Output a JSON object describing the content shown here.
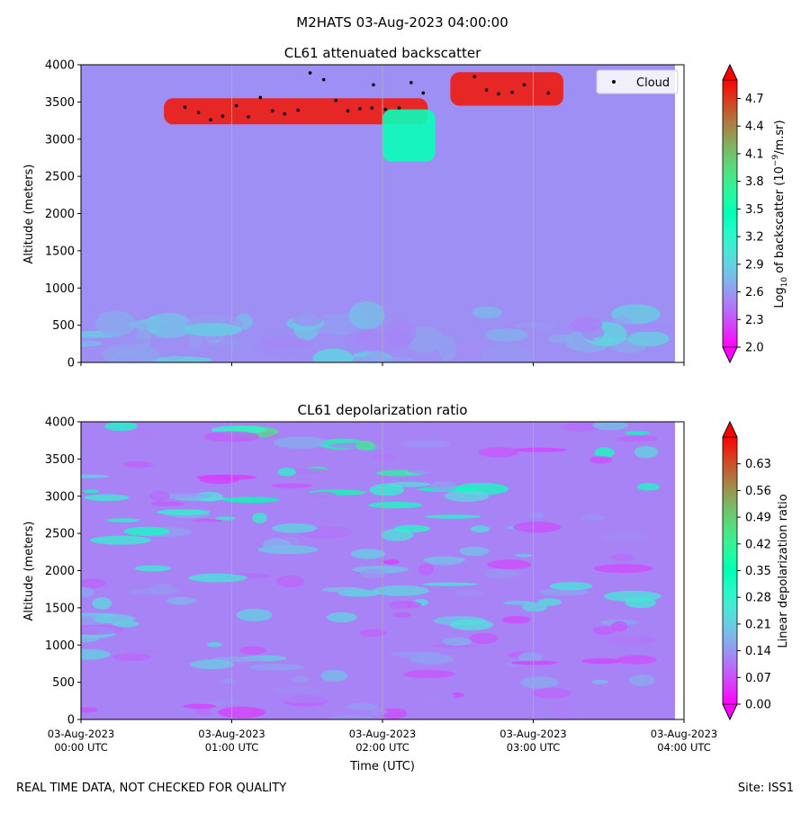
{
  "figure": {
    "suptitle": "M2HATS 03-Aug-2023 04:00:00",
    "footer_left": "REAL TIME DATA, NOT CHECKED FOR QUALITY",
    "footer_right": "Site: ISS1"
  },
  "chart_data": [
    {
      "type": "heatmap",
      "title": "CL61 attenuated backscatter",
      "ylabel": "Altitude (meters)",
      "xlabel": "",
      "ylim": [
        0,
        4000
      ],
      "yticks": [
        "0",
        "500",
        "1000",
        "1500",
        "2000",
        "2500",
        "3000",
        "3500",
        "4000"
      ],
      "xlim_hours": [
        0,
        4
      ],
      "grid": "vertical lines at hourly ticks",
      "colorbar": {
        "label": "Log10 of backscatter (10^-9/m.sr)",
        "label_parts": {
          "base": "Log",
          "sub": "10",
          "mid": " of backscatter (10",
          "sup": "−9",
          "end": "/m.sr)"
        },
        "vmin": 2.0,
        "vmax": 4.9,
        "ticks": [
          2.0,
          2.3,
          2.6,
          2.9,
          3.2,
          3.5,
          3.8,
          4.1,
          4.4,
          4.7
        ],
        "extend": "both",
        "colormap": "rainbow"
      },
      "background_value": 2.55,
      "features": [
        {
          "desc": "cloud layer base",
          "x_start_h": 0.55,
          "x_end_h": 2.3,
          "base_m": 3200,
          "top_m": 3550,
          "value": 4.8
        },
        {
          "desc": "cloud layer",
          "x_start_h": 2.45,
          "x_end_h": 3.2,
          "base_m": 3450,
          "top_m": 3900,
          "value": 4.8
        },
        {
          "desc": "fall streak",
          "x_start_h": 2.0,
          "x_end_h": 2.35,
          "base_m": 2700,
          "top_m": 3400,
          "value": 3.4
        }
      ],
      "series": [
        {
          "name": "Cloud",
          "marker": "black dot",
          "points": [
            [
              0.69,
              3430
            ],
            [
              0.78,
              3360
            ],
            [
              0.86,
              3260
            ],
            [
              0.94,
              3310
            ],
            [
              1.03,
              3450
            ],
            [
              1.11,
              3300
            ],
            [
              1.19,
              3560
            ],
            [
              1.27,
              3380
            ],
            [
              1.35,
              3340
            ],
            [
              1.44,
              3390
            ],
            [
              1.52,
              3890
            ],
            [
              1.61,
              3800
            ],
            [
              1.69,
              3520
            ],
            [
              1.77,
              3380
            ],
            [
              1.85,
              3410
            ],
            [
              1.93,
              3420
            ],
            [
              1.94,
              3730
            ],
            [
              2.02,
              3400
            ],
            [
              2.11,
              3420
            ],
            [
              2.19,
              3760
            ],
            [
              2.27,
              3620
            ],
            [
              2.61,
              3840
            ],
            [
              2.69,
              3660
            ],
            [
              2.77,
              3610
            ],
            [
              2.86,
              3630
            ],
            [
              2.94,
              3730
            ],
            [
              3.1,
              3620
            ]
          ]
        }
      ],
      "legend": {
        "position": "top-right",
        "entries": [
          "Cloud"
        ]
      }
    },
    {
      "type": "heatmap",
      "title": "CL61 depolarization ratio",
      "ylabel": "Altitude (meters)",
      "xlabel": "Time (UTC)",
      "ylim": [
        0,
        4000
      ],
      "yticks": [
        "0",
        "500",
        "1000",
        "1500",
        "2000",
        "2500",
        "3000",
        "3500",
        "4000"
      ],
      "xlim_hours": [
        0,
        4
      ],
      "xticks": [
        {
          "date": "03-Aug-2023",
          "time": "00:00 UTC"
        },
        {
          "date": "03-Aug-2023",
          "time": "01:00 UTC"
        },
        {
          "date": "03-Aug-2023",
          "time": "02:00 UTC"
        },
        {
          "date": "03-Aug-2023",
          "time": "03:00 UTC"
        },
        {
          "date": "03-Aug-2023",
          "time": "04:00 UTC"
        }
      ],
      "grid": "vertical lines at hourly ticks",
      "colorbar": {
        "label": "Linear depolarization ratio",
        "vmin": 0.0,
        "vmax": 0.7,
        "ticks": [
          0.0,
          0.07,
          0.14,
          0.21,
          0.28,
          0.35,
          0.42,
          0.49,
          0.56,
          0.63
        ],
        "extend": "both",
        "colormap": "rainbow"
      },
      "background_value": 0.12
    }
  ]
}
